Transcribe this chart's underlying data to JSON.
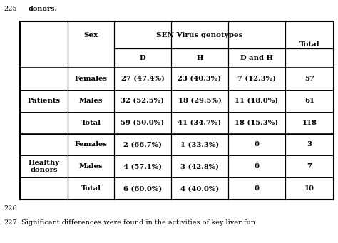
{
  "top_text_num": "225",
  "top_text_body": "donors.",
  "bottom_num": "226",
  "bottom_text_num": "227",
  "bottom_text_body": "    Significant differences were found in the activities of key liver fun",
  "header_row1_cols": [
    "",
    "Sex",
    "SEN Virus genotypes",
    "Total"
  ],
  "header_row2_cols": [
    "D",
    "H",
    "D and H"
  ],
  "rows": [
    [
      "Patients",
      "Females",
      "27 (47.4%)",
      "23 (40.3%)",
      "7 (12.3%)",
      "57"
    ],
    [
      "",
      "Males",
      "32 (52.5%)",
      "18 (29.5%)",
      "11 (18.0%)",
      "61"
    ],
    [
      "",
      "Total",
      "59 (50.0%)",
      "41 (34.7%)",
      "18 (15.3%)",
      "118"
    ],
    [
      "Healthy\ndonors",
      "Females",
      "2 (66.7%)",
      "1 (33.3%)",
      "0",
      "3"
    ],
    [
      "",
      "Males",
      "4 (57.1%)",
      "3 (42.8%)",
      "0",
      "7"
    ],
    [
      "",
      "Total",
      "6 (60.0%)",
      "4 (40.0%)",
      "0",
      "10"
    ]
  ],
  "bg_color": "#ffffff",
  "text_color": "#000000",
  "line_color": "#000000"
}
